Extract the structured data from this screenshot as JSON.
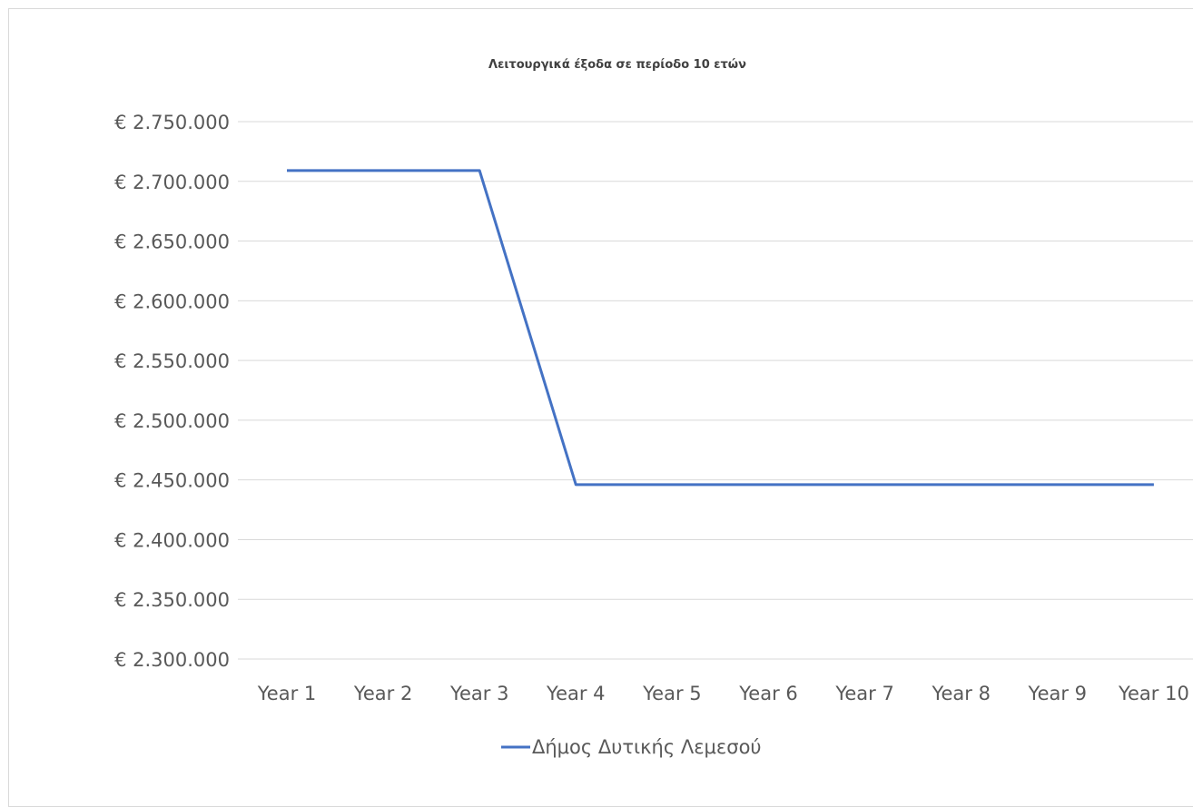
{
  "chart_data": {
    "type": "line",
    "title": "Λειτουργικά έξοδα σε περίοδο 10 ετών",
    "categories": [
      "Year 1",
      "Year 2",
      "Year 3",
      "Year 4",
      "Year 5",
      "Year 6",
      "Year 7",
      "Year 8",
      "Year 9",
      "Year 10"
    ],
    "series": [
      {
        "name": "Δήμος Δυτικής Λεμεσού",
        "values": [
          2709000,
          2709000,
          2709000,
          2446000,
          2446000,
          2446000,
          2446000,
          2446000,
          2446000,
          2446000
        ],
        "color": "#4472c4"
      }
    ],
    "ylim": [
      2300000,
      2750000
    ],
    "yticks": [
      2300000,
      2350000,
      2400000,
      2450000,
      2500000,
      2550000,
      2600000,
      2650000,
      2700000,
      2750000
    ],
    "ytick_labels": [
      "€ 2.300.000",
      "€ 2.350.000",
      "€ 2.400.000",
      "€ 2.450.000",
      "€ 2.500.000",
      "€ 2.550.000",
      "€ 2.600.000",
      "€ 2.650.000",
      "€ 2.700.000",
      "€ 2.750.000"
    ],
    "grid": true,
    "legend_position": "bottom",
    "xlabel": "",
    "ylabel": ""
  }
}
